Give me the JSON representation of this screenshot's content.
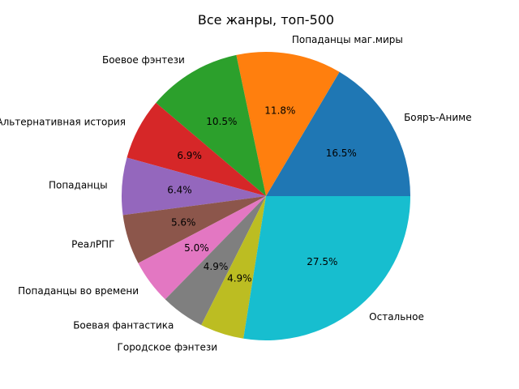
{
  "chart_data": {
    "type": "pie",
    "title": "Все жанры, топ-500",
    "labels": [
      "Бояръ-Аниме",
      "Попаданцы маг.миры",
      "Боевое фэнтези",
      "Альтернативная история",
      "Попаданцы",
      "РеалРПГ",
      "Попаданцы во времени",
      "Боевая фантастика",
      "Городское фэнтези",
      "Остальное"
    ],
    "values": [
      16.5,
      11.8,
      10.5,
      6.9,
      6.4,
      5.6,
      5.0,
      4.9,
      4.9,
      27.5
    ],
    "pct_labels": [
      "16.5%",
      "11.8%",
      "10.5%",
      "6.9%",
      "6.4%",
      "5.6%",
      "5.0%",
      "4.9%",
      "4.9%",
      "27.5%"
    ],
    "colors": [
      "#1f77b4",
      "#ff7f0e",
      "#2ca02c",
      "#d62728",
      "#9467bd",
      "#8c564b",
      "#e377c2",
      "#7f7f7f",
      "#bcbd22",
      "#17becf"
    ],
    "start_angle_deg": 0,
    "direction": "counterclockwise"
  }
}
